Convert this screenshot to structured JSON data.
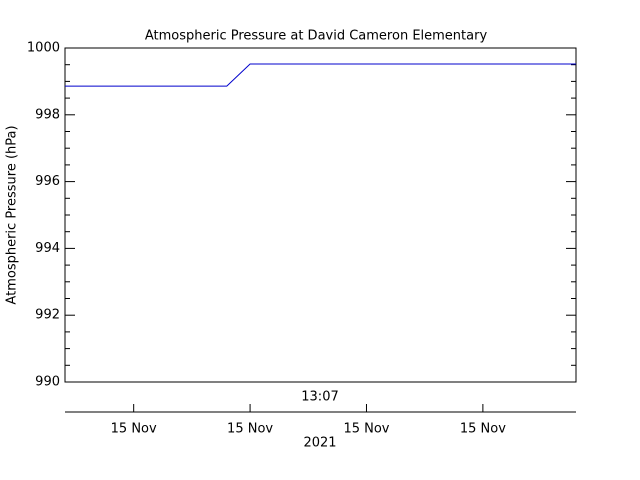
{
  "chart_data": {
    "type": "line",
    "title": "Atmospheric Pressure at David Cameron Elementary",
    "ylabel": "Atmospheric Pressure (hPa)",
    "xlabel": "2021",
    "annotation": "13:07",
    "series": [
      {
        "name": "Atmospheric Pressure",
        "color": "#0000cc",
        "x": [
          0.41,
          1.8,
          2.0,
          4.8
        ],
        "values": [
          998.86,
          998.86,
          999.52,
          999.52
        ]
      }
    ],
    "xlim": [
      0.41,
      4.8
    ],
    "xticks": [
      {
        "value": 1,
        "label": "15 Nov"
      },
      {
        "value": 2,
        "label": "15 Nov"
      },
      {
        "value": 3,
        "label": "15 Nov"
      },
      {
        "value": 4,
        "label": "15 Nov"
      }
    ],
    "ylim": [
      990,
      1000
    ],
    "yticks": [
      990,
      992,
      994,
      996,
      998,
      1000
    ],
    "grid": false
  }
}
